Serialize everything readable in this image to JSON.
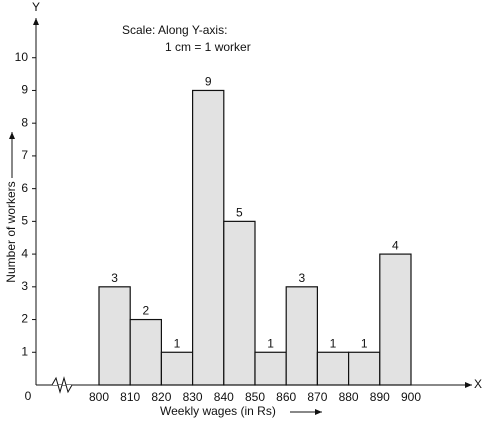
{
  "chart_data": {
    "type": "histogram",
    "annotation": [
      "Scale: Along Y-axis:",
      "1 cm = 1 worker"
    ],
    "x_axis_letter": "X",
    "y_axis_letter": "Y",
    "origin_label": "0",
    "x_label": "Weekly wages (in Rs)",
    "y_label": "Number of workers",
    "bins": [
      800,
      810,
      820,
      830,
      840,
      850,
      860,
      870,
      880,
      890,
      900
    ],
    "values": [
      3,
      2,
      1,
      9,
      5,
      1,
      3,
      1,
      1,
      4
    ],
    "color": "#e2e2e2",
    "ylim": [
      0,
      11
    ],
    "yticks": [
      1,
      2,
      3,
      4,
      5,
      6,
      7,
      8,
      9,
      10
    ]
  }
}
